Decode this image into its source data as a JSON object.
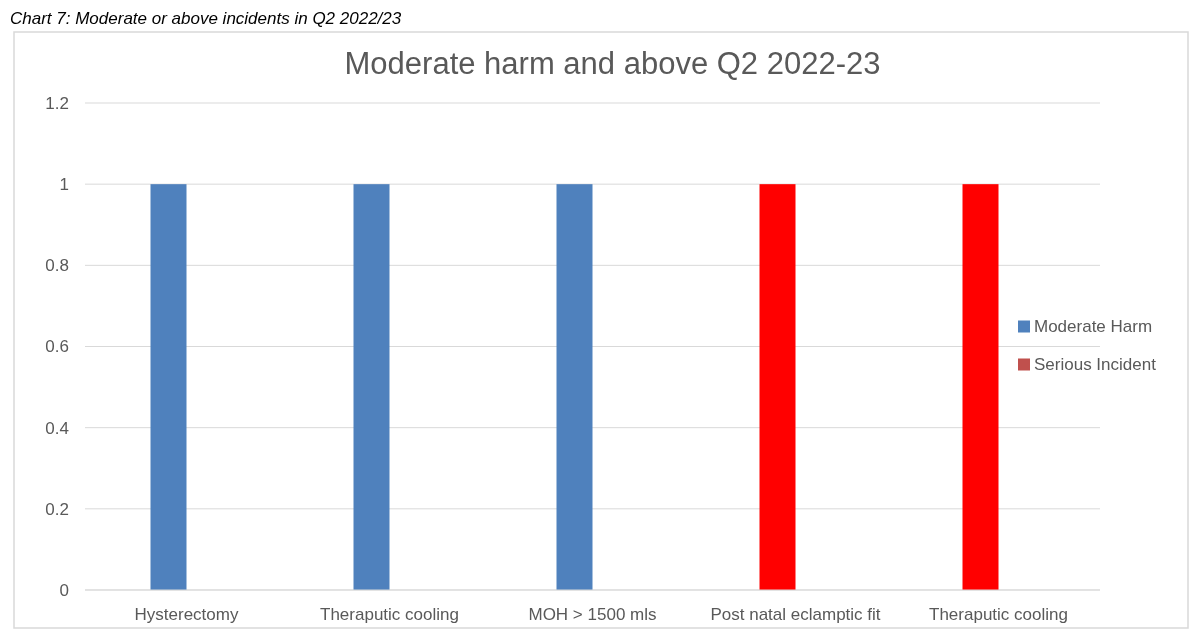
{
  "chart_data": {
    "type": "bar",
    "title": "Moderate harm and above Q2 2022-23",
    "annotations": [
      "Chart 7: Moderate or above incidents in Q2 2022/23"
    ],
    "categories": [
      "Hysterectomy",
      "Theraputic cooling",
      "MOH > 1500 mls",
      "Post natal eclamptic fit",
      "Theraputic cooling"
    ],
    "series": [
      {
        "name": "Moderate Harm",
        "color": "#4f81bd",
        "colors": [
          "#4f81bd",
          "#4f81bd",
          "#4f81bd",
          "#ff0000",
          "#ff0000"
        ],
        "values": [
          1,
          1,
          1,
          1,
          1
        ]
      },
      {
        "name": "Serious Incident",
        "color": "#c0504d",
        "values": [
          null,
          null,
          null,
          null,
          null
        ]
      }
    ],
    "ylim": [
      0,
      1.2
    ],
    "yticks": [
      0,
      0.2,
      0.4,
      0.6,
      0.8,
      1,
      1.2
    ],
    "grid": "y",
    "legend": "right"
  }
}
